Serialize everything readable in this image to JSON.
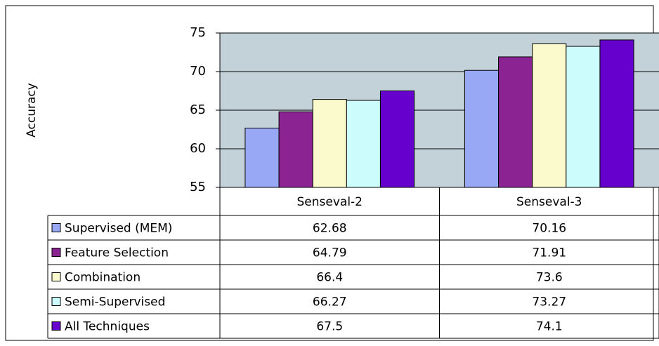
{
  "chart_data": {
    "type": "bar",
    "y_label": "Accuracy",
    "categories": [
      "Senseval-2",
      "Senseval-3"
    ],
    "series": [
      {
        "name": "Supervised (MEM)",
        "color": "#99a8f5",
        "values": [
          62.68,
          70.16
        ]
      },
      {
        "name": "Feature Selection",
        "color": "#8c2393",
        "values": [
          64.79,
          71.91
        ]
      },
      {
        "name": "Combination",
        "color": "#fafacc",
        "values": [
          66.4,
          73.6
        ]
      },
      {
        "name": "Semi-Supervised",
        "color": "#ccfcfc",
        "values": [
          66.27,
          73.27
        ]
      },
      {
        "name": "All Techniques",
        "color": "#6600cc",
        "values": [
          67.5,
          74.1
        ]
      }
    ],
    "ylim": [
      55,
      75
    ],
    "yticks": [
      55,
      60,
      65,
      70,
      75
    ],
    "plot_background": "#c3d2d9"
  }
}
